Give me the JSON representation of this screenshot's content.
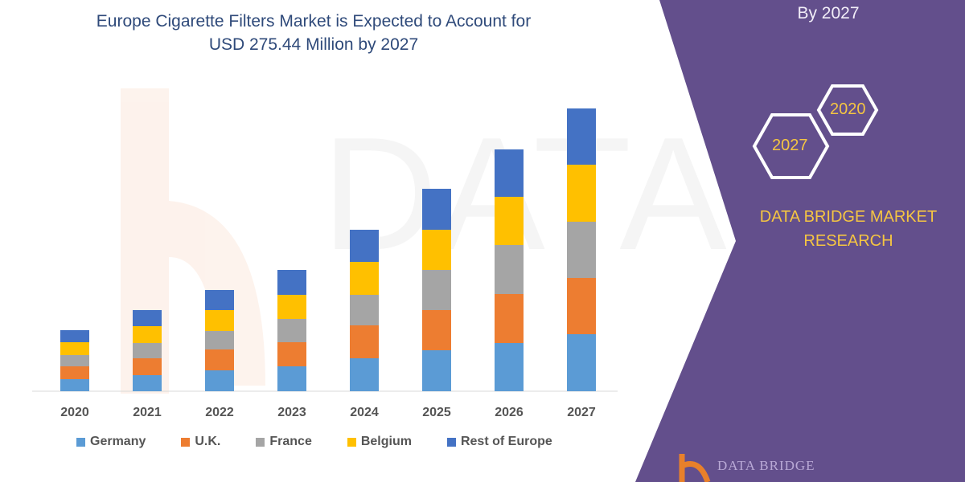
{
  "title": "Europe Cigarette Filters Market is Expected to Account for USD 275.44 Million by 2027",
  "title_line1": "Europe Cigarette Filters Market is Expected to Account for",
  "title_line2": "USD 275.44 Million by 2027",
  "right_panel": {
    "heading_visible": "By 2027",
    "hex_years": [
      "2020",
      "2027"
    ],
    "brand_line1": "DATA BRIDGE MARKET",
    "brand_line2": "RESEARCH",
    "logo_text": "DATA BRIDGE",
    "panel_color": "#634f8c",
    "accent_color": "#f5c542"
  },
  "chart_data": {
    "type": "bar",
    "stacked": true,
    "categories": [
      "2020",
      "2021",
      "2022",
      "2023",
      "2024",
      "2025",
      "2026",
      "2027"
    ],
    "series": [
      {
        "name": "Germany",
        "color": "#5b9bd5",
        "values": [
          15,
          20,
          26,
          31,
          41,
          51,
          60,
          71
        ]
      },
      {
        "name": "U.K.",
        "color": "#ed7d31",
        "values": [
          16,
          21,
          26,
          30,
          41,
          50,
          61,
          70
        ]
      },
      {
        "name": "France",
        "color": "#a5a5a5",
        "values": [
          14,
          19,
          23,
          29,
          38,
          50,
          61,
          70
        ]
      },
      {
        "name": "Belgium",
        "color": "#ffc000",
        "values": [
          16,
          21,
          26,
          30,
          41,
          50,
          60,
          71
        ]
      },
      {
        "name": "Rest of Europe",
        "color": "#4472c4",
        "values": [
          15,
          20,
          25,
          31,
          40,
          51,
          59,
          70
        ]
      }
    ],
    "xlabel": "",
    "ylabel": "",
    "y_axis_shown": false,
    "grid": false,
    "legend": "bottom"
  }
}
